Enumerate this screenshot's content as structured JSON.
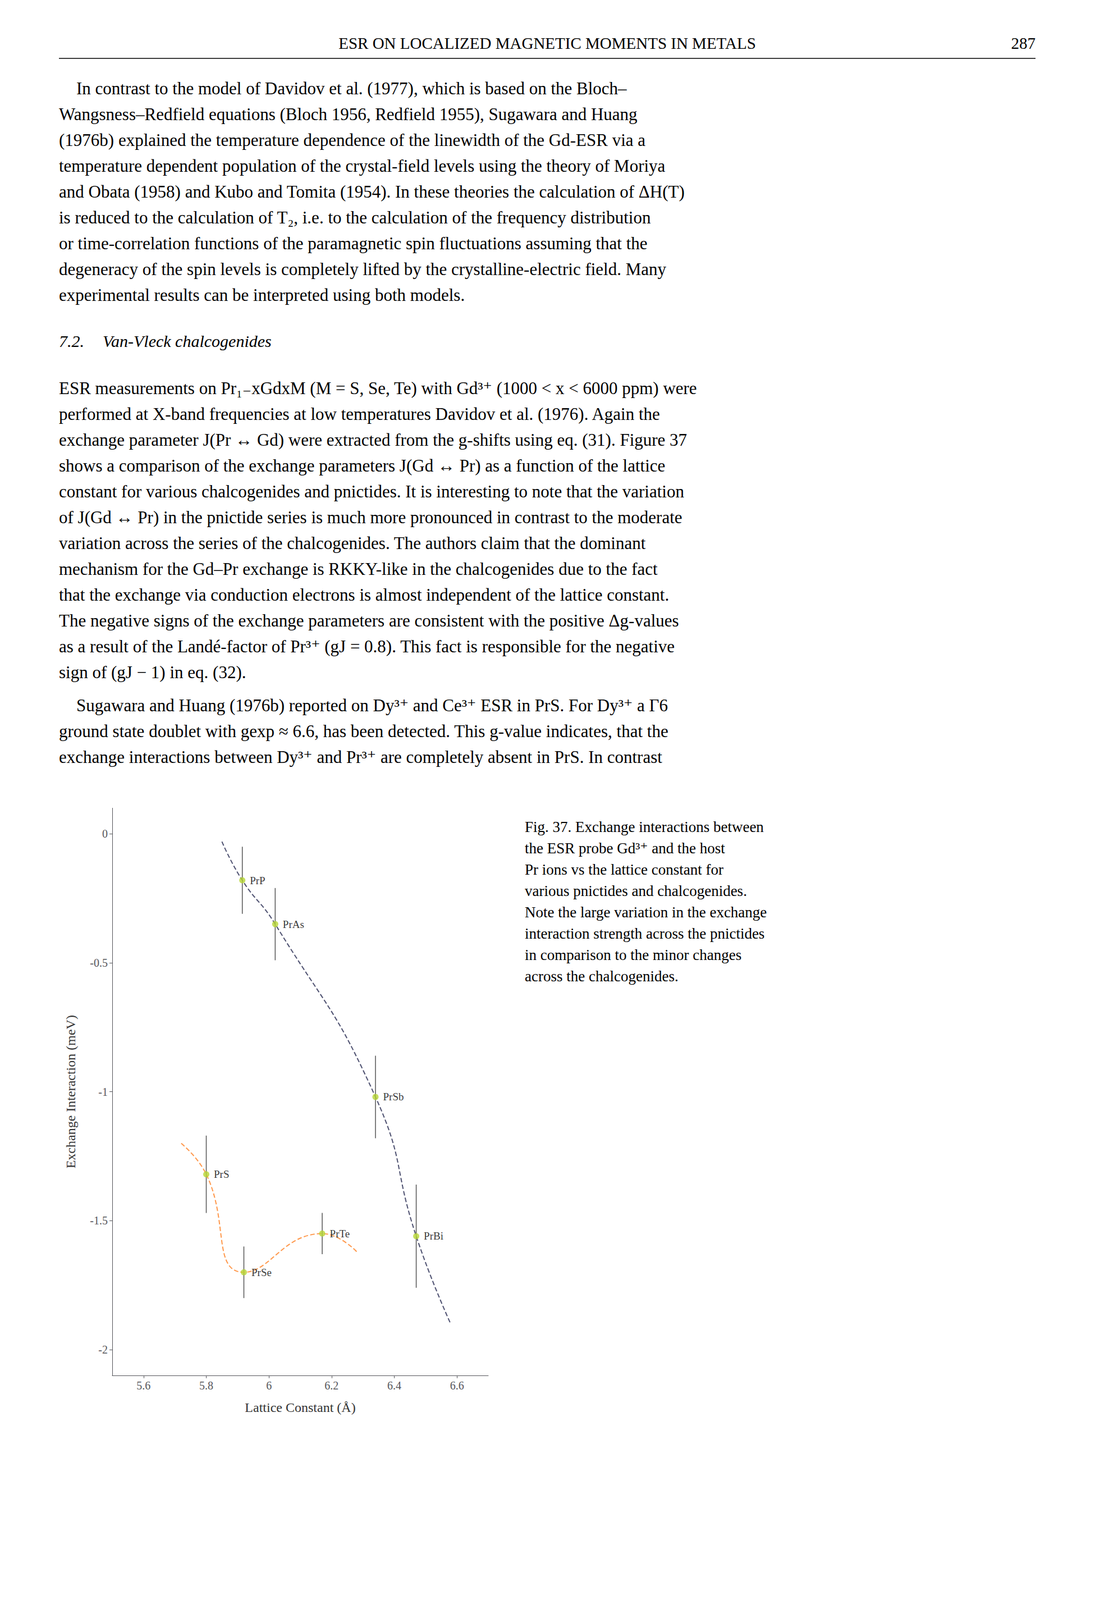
{
  "page": {
    "header": "ESR ON LOCALIZED MAGNETIC MOMENTS IN METALS",
    "page_number": "287",
    "paragraphs_before_heading": [
      [
        "    In contrast to the model of Davidov et al. (1977), which is based on the Bloch–",
        "Wangsness–Redfield equations (Bloch 1956, Redfield 1955), Sugawara and Huang",
        "(1976b) explained the temperature dependence of the linewidth of the Gd-ESR via a",
        "temperature dependent population of the crystal-field levels using the theory of Moriya",
        "and Obata (1958) and Kubo and Tomita (1954). In these theories the calculation of ΔH(T)",
        "is reduced to the calculation of T₂, i.e. to the calculation of the frequency distribution",
        "or time-correlation functions of the paramagnetic spin fluctuations assuming that the",
        "degeneracy of the spin levels is completely lifted by the crystalline-electric field. Many",
        "experimental results can be interpreted using both models."
      ]
    ],
    "section_number": "7.2.",
    "section_title": "Van-Vleck chalcogenides",
    "paragraphs_after_heading": [
      [
        "ESR measurements on Pr₁₋xGdxM (M = S, Se, Te) with Gd³⁺ (1000 < x < 6000 ppm) were",
        "performed at X-band frequencies at low temperatures Davidov et al. (1976). Again the",
        "exchange parameter J(Pr ↔ Gd) were extracted from the g-shifts using eq. (31). Figure 37",
        "shows a comparison of the exchange parameters J(Gd ↔ Pr) as a function of the lattice",
        "constant for various chalcogenides and pnictides. It is interesting to note that the variation",
        "of J(Gd ↔ Pr) in the pnictide series is much more pronounced in contrast to the moderate",
        "variation across the series of the chalcogenides. The authors claim that the dominant",
        "mechanism for the Gd–Pr exchange is RKKY-like in the chalcogenides due to the fact",
        "that the exchange via conduction electrons is almost independent of the lattice constant.",
        "The negative signs of the exchange parameters are consistent with the positive Δg-values",
        "as a result of the Landé-factor of Pr³⁺ (gJ = 0.8). This fact is responsible for the negative",
        "sign of (gJ − 1) in eq. (32)."
      ],
      [
        "    Sugawara and Huang (1976b) reported on Dy³⁺ and Ce³⁺ ESR in PrS. For Dy³⁺ a Γ6",
        "ground state doublet with gexp ≈ 6.6, has been detected. This g-value indicates, that the",
        "exchange interactions between Dy³⁺ and Pr³⁺ are completely absent in PrS. In contrast"
      ]
    ],
    "caption": [
      "Fig. 37. Exchange interactions between",
      "the ESR probe Gd³⁺ and the host",
      "Pr ions vs the lattice constant for",
      "various pnictides and chalcogenides.",
      "Note the large variation in the exchange",
      "interaction strength across the pnictides",
      "in comparison to the minor changes",
      "across the chalcogenides."
    ]
  },
  "chart_data": {
    "type": "scatter",
    "xlabel": "Lattice Constant (Å)",
    "ylabel": "Exchange Interaction (meV)",
    "xlim": [
      5.5,
      6.7
    ],
    "ylim": [
      -2.1,
      0.1
    ],
    "xticks": [
      5.6,
      5.8,
      6,
      6.2,
      6.4,
      6.6
    ],
    "yticks": [
      0,
      -0.5,
      -1,
      -1.5,
      -2
    ],
    "grid": false,
    "series": [
      {
        "type": "scatter",
        "marker": "circle",
        "labels": [
          "PrP",
          "PrAs",
          "PrSb",
          "PrBi",
          "PrS",
          "PrSe",
          "PrTe"
        ],
        "x": [
          5.915,
          6.02,
          6.34,
          6.47,
          5.8,
          5.92,
          6.17
        ],
        "values": [
          -0.18,
          -0.35,
          -1.02,
          -1.56,
          -1.32,
          -1.7,
          -1.55
        ],
        "yerr": [
          0.13,
          0.14,
          0.16,
          0.2,
          0.15,
          0.1,
          0.08
        ]
      },
      {
        "type": "line",
        "line_style": "dashed",
        "x": [
          5.85,
          5.915,
          6.02,
          6.34,
          6.47,
          6.58
        ],
        "values": [
          -0.03,
          -0.18,
          -0.35,
          -1.02,
          -1.56,
          -1.9
        ]
      },
      {
        "type": "line",
        "line_style": "dashed",
        "x": [
          5.72,
          5.8,
          5.92,
          6.17,
          6.28
        ],
        "values": [
          -1.2,
          -1.32,
          -1.7,
          -1.55,
          -1.62
        ]
      }
    ]
  }
}
